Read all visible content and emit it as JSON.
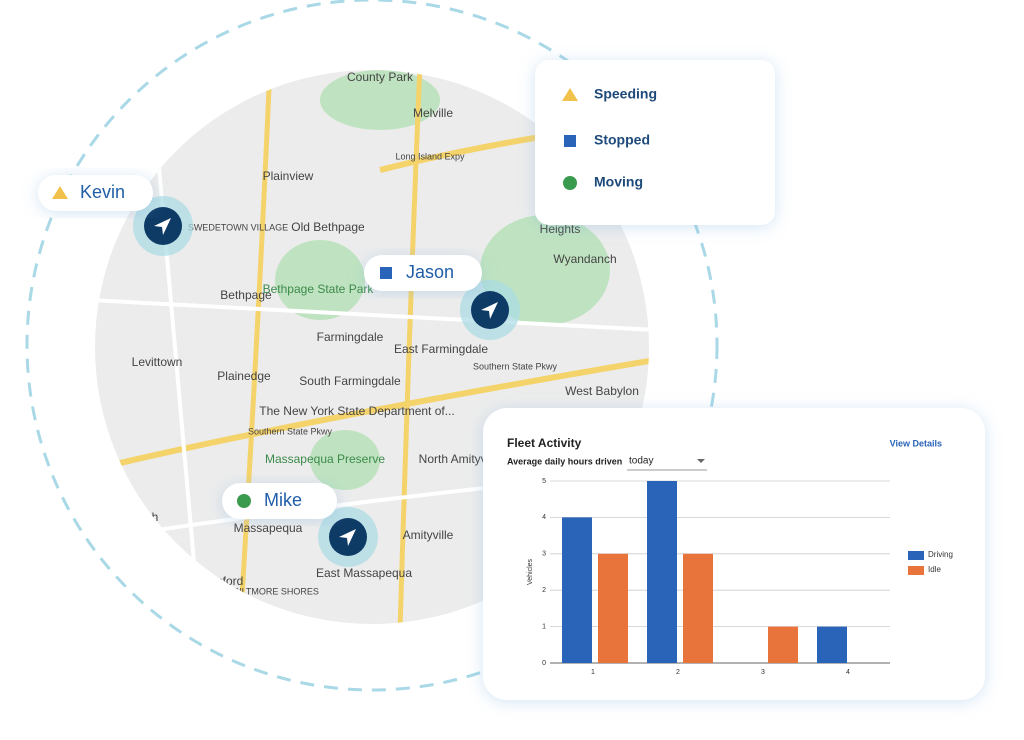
{
  "map": {
    "labels": [
      "County Park",
      "Melville",
      "Long Island Expy",
      "Plainview",
      "SWEDETOWN VILLAGE",
      "Old Bethpage",
      "Heights",
      "Wyandanch",
      "Bethpage",
      "Bethpage State Park",
      "Farmingdale",
      "East Farmingdale",
      "Levittown",
      "Plainedge",
      "South Farmingdale",
      "Southern State Pkwy",
      "West Babylon",
      "The New York State Department of...",
      "Southern State Pkwy",
      "Massapequa Preserve",
      "North Amityville",
      "Massapequa",
      "Amityville",
      "East Massapequa",
      "BILTMORE SHORES",
      "antagh",
      "sford"
    ],
    "markers": [
      "Kevin",
      "Jason",
      "Mike"
    ]
  },
  "status_legend": [
    "Speeding",
    "Stopped",
    "Moving"
  ],
  "chart_data": {
    "type": "bar",
    "title": "Fleet Activity",
    "link": "View Details",
    "subtitle": "Average daily hours driven",
    "period": "today",
    "y_label": "Vehicles",
    "categories": [
      "1",
      "2",
      "3",
      "4"
    ],
    "series": [
      {
        "name": "Driving",
        "color": "#2a64b8",
        "values": [
          4,
          5,
          0,
          1
        ]
      },
      {
        "name": "Idle",
        "color": "#e8743b",
        "values": [
          3,
          3,
          1,
          0
        ]
      }
    ],
    "ylim": [
      0,
      5
    ],
    "yticks": [
      0,
      1,
      2,
      3,
      4,
      5
    ],
    "grid": true
  }
}
